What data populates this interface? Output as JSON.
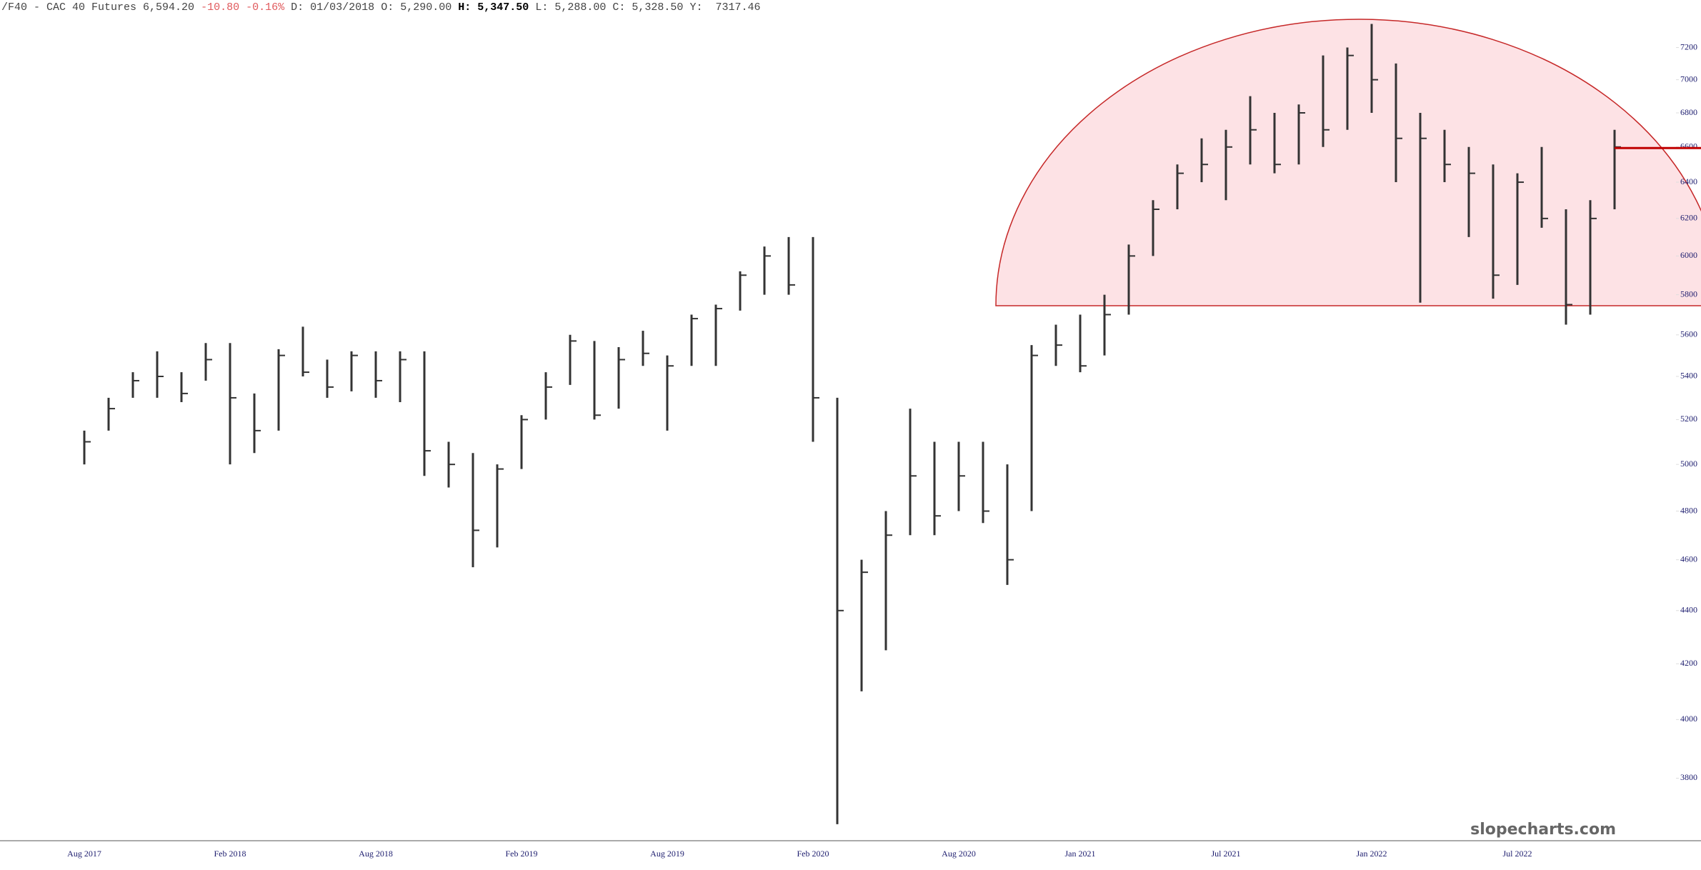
{
  "chart_data": {
    "type": "ohlc",
    "header": {
      "symbol": "/F40 - CAC 40 Futures",
      "last": "6,594.20",
      "change": "-10.80",
      "change_pct": "-0.16%",
      "date_label": "D:",
      "date": "01/03/2018",
      "open_label": "O:",
      "open": "5,290.00",
      "high_label": "H:",
      "high": "5,347.50",
      "low_label": "L:",
      "low": "5,288.00",
      "close_label": "C:",
      "close": "5,328.50",
      "y_label": "Y:",
      "y": "7317.46"
    },
    "watermark": "slopecharts.com",
    "color": "#333333",
    "log_scale": true,
    "x": [
      "Aug 2017",
      "Sep 2017",
      "Oct 2017",
      "Nov 2017",
      "Dec 2017",
      "Jan 2018",
      "Feb 2018",
      "Mar 2018",
      "Apr 2018",
      "May 2018",
      "Jun 2018",
      "Jul 2018",
      "Aug 2018",
      "Sep 2018",
      "Oct 2018",
      "Nov 2018",
      "Dec 2018",
      "Jan 2019",
      "Feb 2019",
      "Mar 2019",
      "Apr 2019",
      "May 2019",
      "Jun 2019",
      "Jul 2019",
      "Aug 2019",
      "Sep 2019",
      "Oct 2019",
      "Nov 2019",
      "Dec 2019",
      "Jan 2020",
      "Feb 2020",
      "Mar 2020",
      "Apr 2020",
      "May 2020",
      "Jun 2020",
      "Jul 2020",
      "Aug 2020",
      "Sep 2020",
      "Oct 2020",
      "Nov 2020",
      "Dec 2020",
      "Jan 2021",
      "Feb 2021",
      "Mar 2021",
      "Apr 2021",
      "May 2021",
      "Jun 2021",
      "Jul 2021",
      "Aug 2021",
      "Sep 2021",
      "Oct 2021",
      "Nov 2021",
      "Dec 2021",
      "Jan 2022",
      "Feb 2022",
      "Mar 2022",
      "Apr 2022",
      "May 2022",
      "Jun 2022",
      "Jul 2022",
      "Aug 2022",
      "Sep 2022",
      "Oct 2022",
      "Nov 2022"
    ],
    "high": [
      5150,
      5300,
      5420,
      5520,
      5420,
      5560,
      5560,
      5320,
      5530,
      5640,
      5480,
      5520,
      5520,
      5520,
      5520,
      5100,
      5050,
      5000,
      5220,
      5420,
      5600,
      5570,
      5540,
      5620,
      5500,
      5700,
      5750,
      5920,
      6050,
      6100,
      6100,
      5300,
      4600,
      4800,
      5250,
      5100,
      5100,
      5100,
      5000,
      5550,
      5650,
      5700,
      5800,
      6060,
      6300,
      6500,
      6650,
      6700,
      6900,
      6800,
      6850,
      7150,
      7200,
      7350,
      7100,
      6800,
      6700,
      6600,
      6500,
      6450,
      6600,
      6250,
      6300,
      6700
    ],
    "low": [
      5000,
      5150,
      5300,
      5300,
      5280,
      5380,
      5000,
      5050,
      5150,
      5400,
      5300,
      5330,
      5300,
      5280,
      4950,
      4900,
      4570,
      4650,
      4980,
      5200,
      5360,
      5200,
      5250,
      5450,
      5150,
      5450,
      5450,
      5720,
      5800,
      5800,
      5100,
      3650,
      4100,
      4250,
      4700,
      4700,
      4800,
      4750,
      4500,
      4800,
      5450,
      5420,
      5500,
      5700,
      6000,
      6250,
      6400,
      6300,
      6500,
      6450,
      6500,
      6600,
      6700,
      6800,
      6400,
      5760,
      6400,
      6100,
      5780,
      5850,
      6150,
      5650,
      5700,
      6250
    ],
    "close": [
      5100,
      5250,
      5380,
      5400,
      5320,
      5480,
      5300,
      5150,
      5500,
      5420,
      5350,
      5500,
      5380,
      5480,
      5060,
      5000,
      4720,
      4980,
      5200,
      5350,
      5570,
      5220,
      5480,
      5510,
      5450,
      5680,
      5730,
      5900,
      6000,
      5850,
      5300,
      4400,
      4550,
      4700,
      4950,
      4780,
      4950,
      4800,
      4600,
      5500,
      5550,
      5450,
      5700,
      6000,
      6250,
      6450,
      6500,
      6600,
      6700,
      6500,
      6800,
      6700,
      7150,
      7000,
      6650,
      6650,
      6500,
      6450,
      5900,
      6400,
      6200,
      5750,
      6200,
      6600
    ],
    "ylim": [
      3600,
      7380
    ],
    "yticks": [
      3800,
      4000,
      4200,
      4400,
      4600,
      4800,
      5000,
      5200,
      5400,
      5600,
      5800,
      6000,
      6200,
      6400,
      6600,
      6800,
      7000,
      7200
    ],
    "xticks": [
      "Aug 2017",
      "Feb 2018",
      "Aug 2018",
      "Feb 2019",
      "Aug 2019",
      "Feb 2020",
      "Aug 2020",
      "Jan 2021",
      "Jul 2021",
      "Jan 2022",
      "Jul 2022"
    ],
    "reference_lines": [
      {
        "value": 6594.2,
        "color": "#c00000"
      }
    ]
  }
}
